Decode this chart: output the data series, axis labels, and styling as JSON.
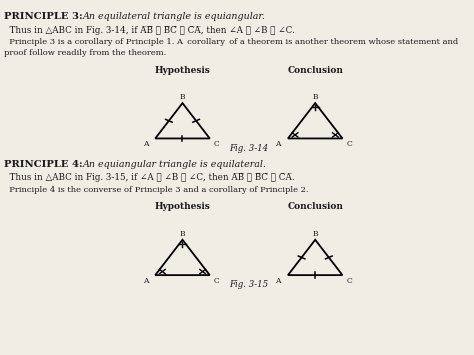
{
  "bg_color": "#f0ede5",
  "text_color": "#1a1a1a",
  "fig314_label": "Fig. 3-14",
  "fig315_label": "Fig. 3-15",
  "hyp_label": "Hypothesis",
  "conc_label": "Conclusion",
  "tri_size": 0.09,
  "lw_tri": 1.3
}
